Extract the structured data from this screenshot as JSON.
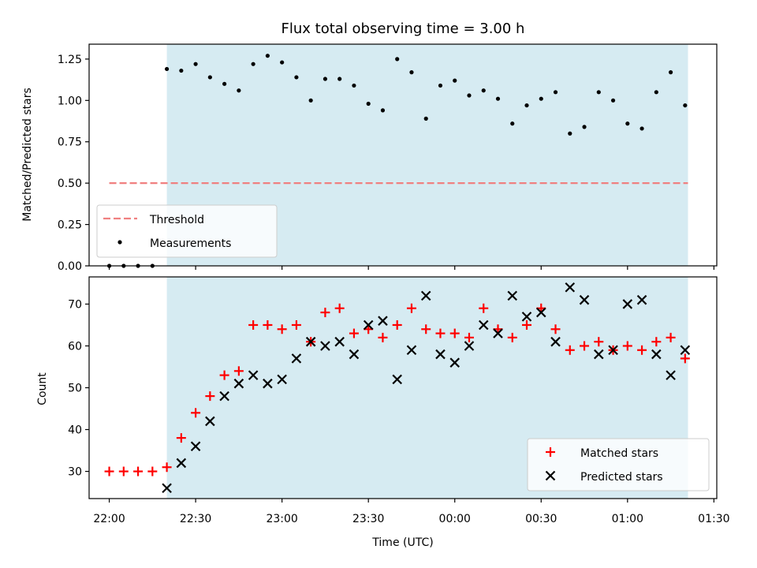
{
  "chart_data": [
    {
      "type": "scatter",
      "title": "Flux total observing time = 3.00 h",
      "ylabel": "Matched/Predicted stars",
      "xlim": [
        "21:53",
        "01:31"
      ],
      "ylim": [
        0,
        1.34
      ],
      "x_ticks": [
        "22:00",
        "22:30",
        "23:00",
        "23:30",
        "00:00",
        "00:30",
        "01:00",
        "01:30"
      ],
      "y_ticks": [
        "0.00",
        "0.25",
        "0.50",
        "0.75",
        "1.00",
        "1.25"
      ],
      "shaded_interval": {
        "start": "22:20",
        "end": "01:21",
        "color": "#add8e6"
      },
      "threshold": {
        "name": "Threshold",
        "value": 0.5,
        "start": "22:00",
        "end": "01:21",
        "color": "#f08080"
      },
      "legend_position": "lower-left",
      "legend": [
        "Threshold",
        "Measurements"
      ],
      "series": [
        {
          "name": "Measurements",
          "color": "#000000",
          "x": [
            "22:00",
            "22:05",
            "22:10",
            "22:15",
            "22:20",
            "22:25",
            "22:30",
            "22:35",
            "22:40",
            "22:45",
            "22:50",
            "22:55",
            "23:00",
            "23:05",
            "23:10",
            "23:15",
            "23:20",
            "23:25",
            "23:30",
            "23:35",
            "23:40",
            "23:45",
            "23:50",
            "23:55",
            "00:00",
            "00:05",
            "00:10",
            "00:15",
            "00:20",
            "00:25",
            "00:30",
            "00:35",
            "00:40",
            "00:45",
            "00:50",
            "00:55",
            "01:00",
            "01:05",
            "01:10",
            "01:15",
            "01:20"
          ],
          "y": [
            0,
            0,
            0,
            0,
            1.19,
            1.18,
            1.22,
            1.14,
            1.1,
            1.06,
            1.22,
            1.27,
            1.23,
            1.14,
            1.0,
            1.13,
            1.13,
            1.09,
            0.98,
            0.94,
            1.25,
            1.17,
            0.89,
            1.09,
            1.12,
            1.03,
            1.06,
            1.01,
            0.86,
            0.97,
            1.01,
            1.05,
            0.8,
            0.84,
            1.05,
            1.0,
            0.86,
            0.83,
            1.05,
            1.17,
            0.97
          ]
        }
      ]
    },
    {
      "type": "scatter",
      "xlabel": "Time (UTC)",
      "ylabel": "Count",
      "xlim": [
        "21:53",
        "01:31"
      ],
      "ylim": [
        23.5,
        76.5
      ],
      "x_ticks": [
        "22:00",
        "22:30",
        "23:00",
        "23:30",
        "00:00",
        "00:30",
        "01:00",
        "01:30"
      ],
      "y_ticks": [
        "30",
        "40",
        "50",
        "60",
        "70"
      ],
      "shaded_interval": {
        "start": "22:20",
        "end": "01:21",
        "color": "#add8e6"
      },
      "legend_position": "lower-right",
      "legend": [
        "Matched stars",
        "Predicted stars"
      ],
      "series": [
        {
          "name": "Matched stars",
          "color": "#ff0000",
          "marker": "plus",
          "x": [
            "22:00",
            "22:05",
            "22:10",
            "22:15",
            "22:20",
            "22:25",
            "22:30",
            "22:35",
            "22:40",
            "22:45",
            "22:50",
            "22:55",
            "23:00",
            "23:05",
            "23:10",
            "23:15",
            "23:20",
            "23:25",
            "23:30",
            "23:35",
            "23:40",
            "23:45",
            "23:50",
            "23:55",
            "00:00",
            "00:05",
            "00:10",
            "00:15",
            "00:20",
            "00:25",
            "00:30",
            "00:35",
            "00:40",
            "00:45",
            "00:50",
            "00:55",
            "01:00",
            "01:05",
            "01:10",
            "01:15",
            "01:20"
          ],
          "y": [
            30,
            30,
            30,
            30,
            31,
            38,
            44,
            48,
            53,
            54,
            65,
            65,
            64,
            65,
            61,
            68,
            69,
            63,
            64,
            62,
            65,
            69,
            64,
            63,
            63,
            62,
            69,
            64,
            62,
            65,
            69,
            64,
            59,
            60,
            61,
            59,
            60,
            59,
            61,
            62,
            57
          ]
        },
        {
          "name": "Predicted stars",
          "color": "#000000",
          "marker": "x",
          "x": [
            "22:20",
            "22:25",
            "22:30",
            "22:35",
            "22:40",
            "22:45",
            "22:50",
            "22:55",
            "23:00",
            "23:05",
            "23:10",
            "23:15",
            "23:20",
            "23:25",
            "23:30",
            "23:35",
            "23:40",
            "23:45",
            "23:50",
            "23:55",
            "00:00",
            "00:05",
            "00:10",
            "00:15",
            "00:20",
            "00:25",
            "00:30",
            "00:35",
            "00:40",
            "00:45",
            "00:50",
            "00:55",
            "01:00",
            "01:05",
            "01:10",
            "01:15",
            "01:20"
          ],
          "y": [
            26,
            32,
            36,
            42,
            48,
            51,
            53,
            51,
            52,
            57,
            61,
            60,
            61,
            58,
            65,
            66,
            52,
            59,
            72,
            58,
            56,
            60,
            65,
            63,
            72,
            67,
            68,
            61,
            74,
            71,
            58,
            59,
            70,
            71,
            58,
            53,
            59
          ]
        }
      ]
    }
  ]
}
